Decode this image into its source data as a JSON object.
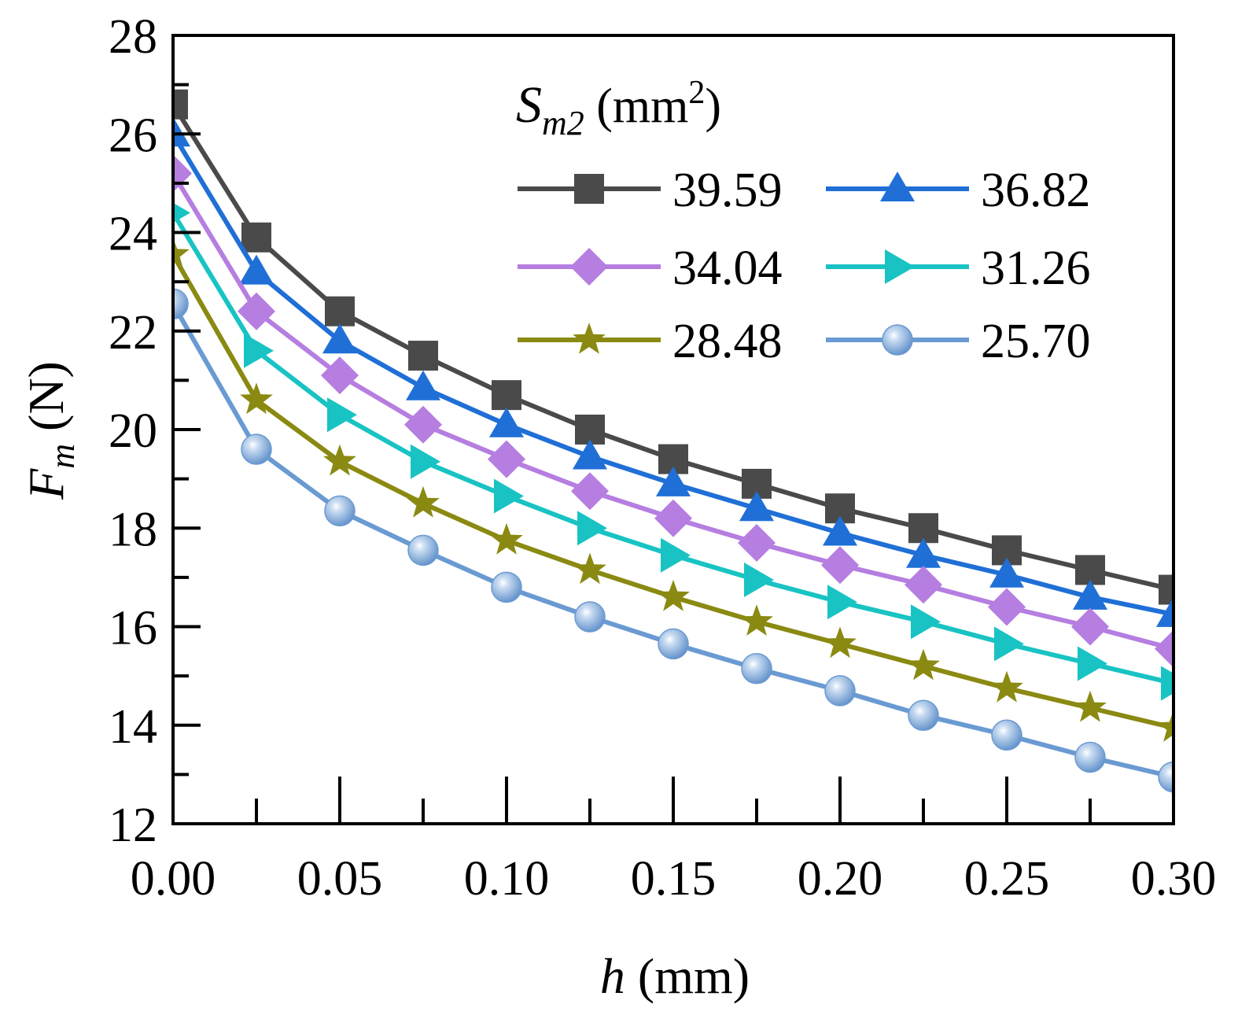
{
  "chart_data": {
    "type": "line",
    "xlabel": {
      "italic": "h",
      "rest": " (mm)"
    },
    "ylabel": {
      "italic": "F",
      "sub": "m",
      "rest": " (N)"
    },
    "xlim": [
      0,
      0.3
    ],
    "ylim": [
      12,
      28
    ],
    "x_ticks": [
      "0.00",
      "0.05",
      "0.10",
      "0.15",
      "0.20",
      "0.25",
      "0.30"
    ],
    "x_tick_values": [
      0,
      0.05,
      0.1,
      0.15,
      0.2,
      0.25,
      0.3
    ],
    "y_ticks": [
      "12",
      "14",
      "16",
      "18",
      "20",
      "22",
      "24",
      "26",
      "28"
    ],
    "y_tick_values": [
      12,
      14,
      16,
      18,
      20,
      22,
      24,
      26,
      28
    ],
    "legend": {
      "title_italic": "S",
      "title_sub": "m2",
      "title_rest_open": " (mm",
      "title_sup": "2",
      "title_rest_close": ")",
      "position": "top-right"
    },
    "x": [
      0,
      0.025,
      0.05,
      0.075,
      0.1,
      0.125,
      0.15,
      0.175,
      0.2,
      0.225,
      0.25,
      0.275,
      0.3
    ],
    "series": [
      {
        "name": "39.59",
        "marker": "square",
        "color": "#4a4a4a",
        "values": [
          26.6,
          23.9,
          22.4,
          21.5,
          20.7,
          20.0,
          19.4,
          18.9,
          18.4,
          18.0,
          17.55,
          17.15,
          16.75
        ]
      },
      {
        "name": "36.82",
        "marker": "triangle",
        "color": "#1f6fd6",
        "values": [
          26.0,
          23.2,
          21.8,
          20.85,
          20.1,
          19.45,
          18.9,
          18.4,
          17.9,
          17.45,
          17.05,
          16.6,
          16.25
        ]
      },
      {
        "name": "34.04",
        "marker": "diamond",
        "color": "#b57ee0",
        "values": [
          25.2,
          22.4,
          21.1,
          20.1,
          19.4,
          18.75,
          18.2,
          17.7,
          17.25,
          16.85,
          16.4,
          16.0,
          15.55
        ]
      },
      {
        "name": "31.26",
        "marker": "triangle-right",
        "color": "#19c3c3",
        "values": [
          24.4,
          21.6,
          20.3,
          19.35,
          18.65,
          18.0,
          17.45,
          16.95,
          16.5,
          16.1,
          15.65,
          15.25,
          14.85
        ]
      },
      {
        "name": "28.48",
        "marker": "star",
        "color": "#8a8a12",
        "values": [
          23.55,
          20.6,
          19.35,
          18.5,
          17.75,
          17.15,
          16.6,
          16.1,
          15.65,
          15.2,
          14.75,
          14.35,
          13.95
        ]
      },
      {
        "name": "25.70",
        "marker": "circle",
        "color": "#6a9ad2",
        "values": [
          22.55,
          19.6,
          18.35,
          17.55,
          16.8,
          16.2,
          15.65,
          15.15,
          14.7,
          14.2,
          13.8,
          13.35,
          12.95
        ]
      }
    ]
  }
}
